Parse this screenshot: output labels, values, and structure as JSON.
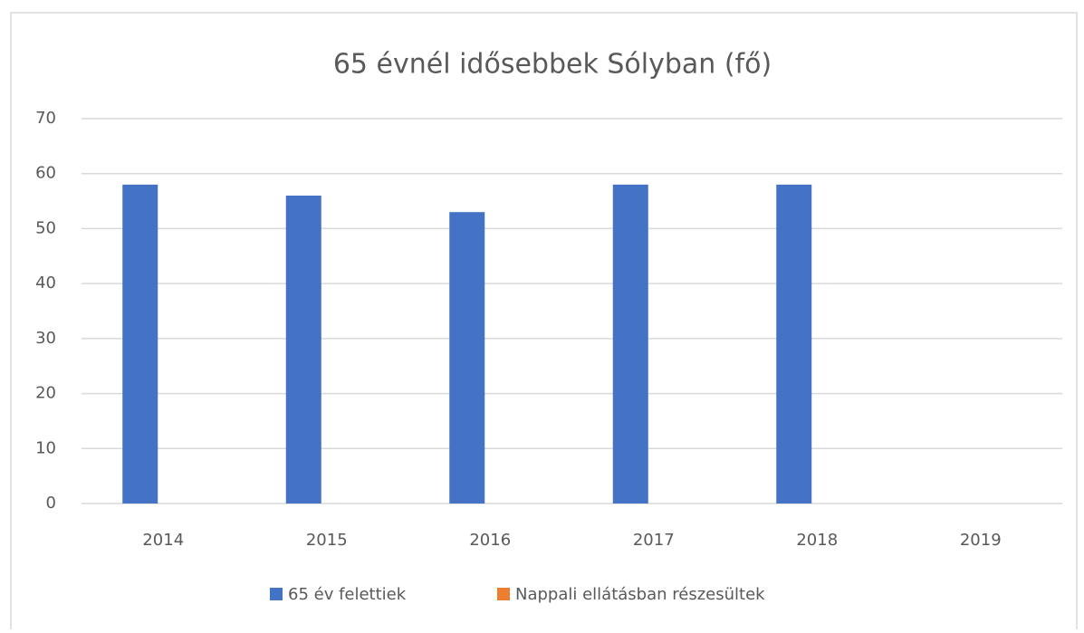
{
  "chart_data": {
    "type": "bar",
    "title": "65 évnél idősebbek Sólyban (fő)",
    "categories": [
      "2014",
      "2015",
      "2016",
      "2017",
      "2018",
      "2019"
    ],
    "series": [
      {
        "name": "65 év felettiek",
        "color": "#4472c4",
        "values": [
          58,
          56,
          53,
          58,
          58,
          null
        ]
      },
      {
        "name": "Nappali ellátásban részesültek",
        "color": "#ed7d31",
        "values": [
          0,
          0,
          0,
          0,
          0,
          null
        ]
      }
    ],
    "ylim": [
      0,
      70
    ],
    "yticks": [
      0,
      10,
      20,
      30,
      40,
      50,
      60,
      70
    ],
    "grid": true,
    "legend": "bottom"
  }
}
